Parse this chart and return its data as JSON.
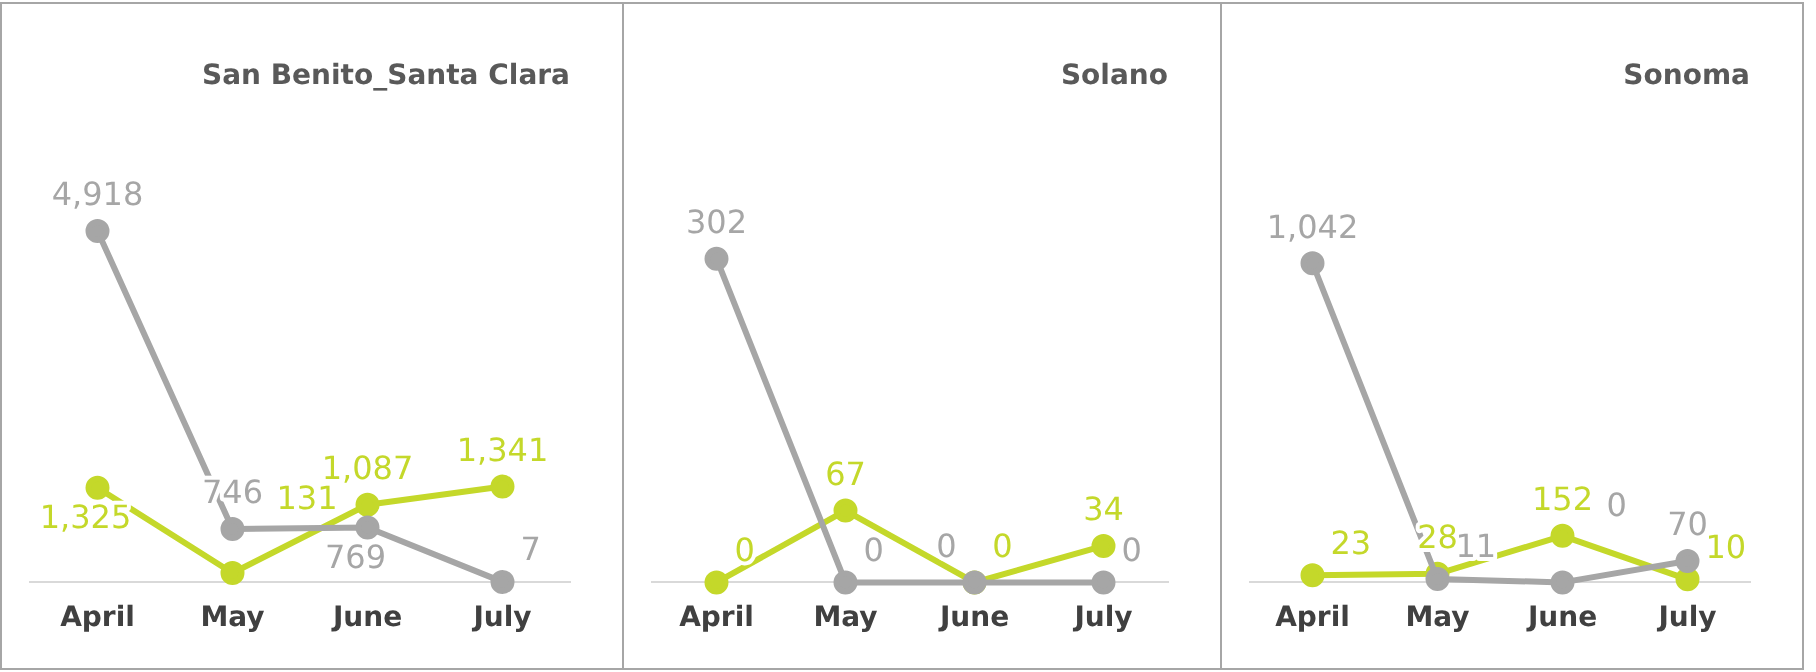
{
  "chart_data": [
    {
      "type": "line",
      "title": "San Benito_Santa Clara",
      "categories": [
        "April",
        "May",
        "June",
        "July"
      ],
      "tick_labels": "x",
      "grid": false,
      "legend": false,
      "marker": "circle",
      "series": [
        {
          "color": "#a6a6a6",
          "values": [
            4918,
            746,
            769,
            7
          ],
          "value_labels": [
            "4,918",
            "746",
            "769",
            "7"
          ]
        },
        {
          "color": "#c4d82a",
          "values": [
            1325,
            131,
            1087,
            1341
          ],
          "value_labels": [
            "1,325",
            "131",
            "1,087",
            "1,341"
          ]
        }
      ]
    },
    {
      "type": "line",
      "title": "Solano",
      "categories": [
        "April",
        "May",
        "June",
        "July"
      ],
      "tick_labels": "x",
      "grid": false,
      "legend": false,
      "marker": "circle",
      "series": [
        {
          "color": "#a6a6a6",
          "values": [
            302,
            0,
            0,
            0
          ],
          "value_labels": [
            "302",
            "0",
            "0",
            "0"
          ]
        },
        {
          "color": "#c4d82a",
          "values": [
            0,
            67,
            0,
            34
          ],
          "value_labels": [
            "0",
            "67",
            "0",
            "34"
          ]
        }
      ]
    },
    {
      "type": "line",
      "title": "Sonoma",
      "categories": [
        "April",
        "May",
        "June",
        "July"
      ],
      "tick_labels": "x",
      "grid": false,
      "legend": false,
      "marker": "circle",
      "series": [
        {
          "color": "#a6a6a6",
          "values": [
            1042,
            11,
            0,
            70
          ],
          "value_labels": [
            "1,042",
            "11",
            "0",
            "70"
          ]
        },
        {
          "color": "#c4d82a",
          "values": [
            23,
            28,
            152,
            10
          ],
          "value_labels": [
            "23",
            "28",
            "152",
            "10"
          ]
        }
      ]
    }
  ]
}
